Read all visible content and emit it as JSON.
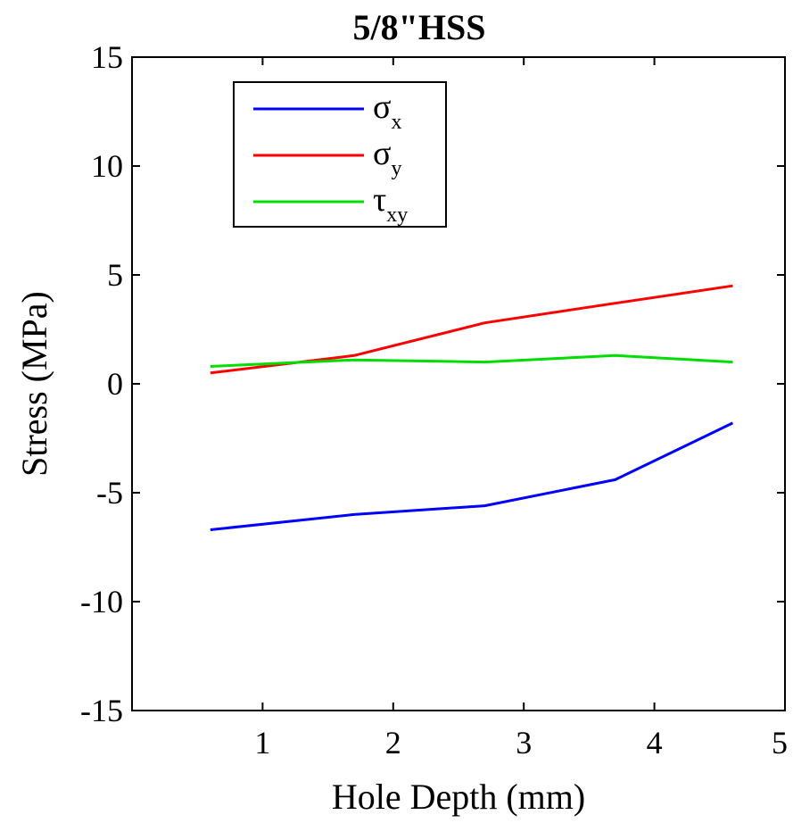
{
  "chart_data": {
    "type": "line",
    "title": "5/8\"HSS",
    "xlabel": "Hole Depth (mm)",
    "ylabel": "Stress (MPa)",
    "xlim": [
      0,
      5
    ],
    "ylim": [
      -15,
      15
    ],
    "xticks": [
      "1",
      "2",
      "3",
      "4",
      "5"
    ],
    "yticks": [
      "15",
      "10",
      "5",
      "0",
      "-5",
      "-10",
      "-15"
    ],
    "grid": false,
    "legend_position": "top-left",
    "series": [
      {
        "name": "σx",
        "symbol": "σ",
        "subscript": "x",
        "color": "#0000ff",
        "x": [
          0.6,
          1.7,
          2.7,
          3.7,
          4.6
        ],
        "y": [
          -6.7,
          -6.0,
          -5.6,
          -4.4,
          -1.8
        ]
      },
      {
        "name": "σy",
        "symbol": "σ",
        "subscript": "y",
        "color": "#ff0000",
        "x": [
          0.6,
          1.7,
          2.7,
          3.7,
          4.6
        ],
        "y": [
          0.5,
          1.3,
          2.8,
          3.7,
          4.5
        ]
      },
      {
        "name": "τxy",
        "symbol": "τ",
        "subscript": "xy",
        "color": "#00dd00",
        "x": [
          0.6,
          1.7,
          2.7,
          3.7,
          4.6
        ],
        "y": [
          0.8,
          1.1,
          1.0,
          1.3,
          1.0
        ]
      }
    ]
  }
}
